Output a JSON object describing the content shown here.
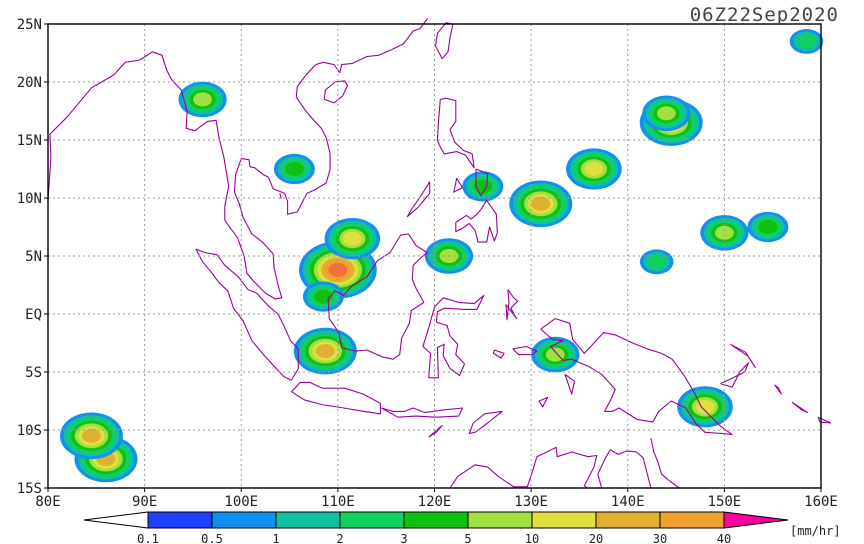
{
  "title": "06Z22Sep2020",
  "map": {
    "lon_range": [
      80,
      160
    ],
    "lat_range": [
      -15,
      25
    ],
    "lat_ticks": [
      {
        "value": 25,
        "label": "25N"
      },
      {
        "value": 20,
        "label": "20N"
      },
      {
        "value": 15,
        "label": "15N"
      },
      {
        "value": 10,
        "label": "10N"
      },
      {
        "value": 5,
        "label": "5N"
      },
      {
        "value": 0,
        "label": "EQ"
      },
      {
        "value": -5,
        "label": "5S"
      },
      {
        "value": -10,
        "label": "10S"
      },
      {
        "value": -15,
        "label": "15S"
      }
    ],
    "lon_ticks": [
      {
        "value": 80,
        "label": "80E"
      },
      {
        "value": 90,
        "label": "90E"
      },
      {
        "value": 100,
        "label": "100E"
      },
      {
        "value": 110,
        "label": "110E"
      },
      {
        "value": 120,
        "label": "120E"
      },
      {
        "value": 130,
        "label": "130E"
      },
      {
        "value": 140,
        "label": "140E"
      },
      {
        "value": 150,
        "label": "150E"
      },
      {
        "value": 160,
        "label": "160E"
      }
    ],
    "grid": true,
    "coastline_color": "#990099"
  },
  "legend": {
    "unit": "[mm/hr]",
    "under_color": "#ffffff",
    "over_color": "#ff00a0",
    "colors": [
      "#2040ff",
      "#1090f0",
      "#10c0a0",
      "#10d060",
      "#10c010",
      "#a0e040",
      "#e0e040",
      "#e0b030",
      "#f0a030",
      "#f07040",
      "#f03050"
    ],
    "labels": [
      "0.1",
      "0.5",
      "1",
      "2",
      "3",
      "5",
      "10",
      "20",
      "30",
      "40"
    ]
  },
  "chart_data": {
    "type": "heatmap",
    "title": "06Z22Sep2020",
    "variable_unit": "mm/hr",
    "x_label": "",
    "y_label": "",
    "x_range_deg_e": [
      80,
      160
    ],
    "y_range_deg_n": [
      -15,
      25
    ],
    "color_levels": [
      0.1,
      0.5,
      1,
      2,
      3,
      5,
      10,
      20,
      30,
      40
    ],
    "features": [
      {
        "lon": 110,
        "lat": 3.8,
        "peak_mmhr": 30
      },
      {
        "lon": 111.5,
        "lat": 6.5,
        "peak_mmhr": 5
      },
      {
        "lon": 108.5,
        "lat": 1.5,
        "peak_mmhr": 2
      },
      {
        "lon": 108.7,
        "lat": -3.2,
        "peak_mmhr": 10
      },
      {
        "lon": 86,
        "lat": -12.5,
        "peak_mmhr": 10
      },
      {
        "lon": 84.5,
        "lat": -10.5,
        "peak_mmhr": 10
      },
      {
        "lon": 144.5,
        "lat": 16.5,
        "peak_mmhr": 10
      },
      {
        "lon": 144,
        "lat": 17.3,
        "peak_mmhr": 3
      },
      {
        "lon": 131,
        "lat": 9.5,
        "peak_mmhr": 10
      },
      {
        "lon": 136.5,
        "lat": 12.5,
        "peak_mmhr": 5
      },
      {
        "lon": 150,
        "lat": 7.0,
        "peak_mmhr": 3
      },
      {
        "lon": 143,
        "lat": 4.5,
        "peak_mmhr": 1
      },
      {
        "lon": 96,
        "lat": 18.5,
        "peak_mmhr": 3
      },
      {
        "lon": 105.5,
        "lat": 12.5,
        "peak_mmhr": 2
      },
      {
        "lon": 154.5,
        "lat": 7.5,
        "peak_mmhr": 2
      },
      {
        "lon": 158.5,
        "lat": 23.5,
        "peak_mmhr": 1
      },
      {
        "lon": 148,
        "lat": -8.0,
        "peak_mmhr": 5
      },
      {
        "lon": 132.5,
        "lat": -3.5,
        "peak_mmhr": 3
      },
      {
        "lon": 121.5,
        "lat": 5.0,
        "peak_mmhr": 3
      },
      {
        "lon": 125,
        "lat": 11.0,
        "peak_mmhr": 2
      }
    ]
  }
}
